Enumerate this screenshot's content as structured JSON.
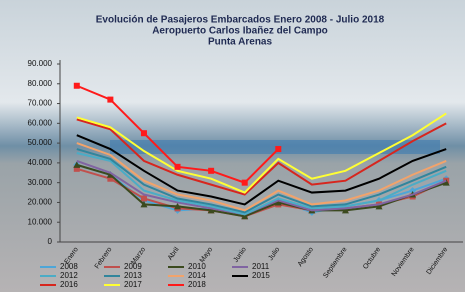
{
  "chart_data": {
    "type": "line",
    "title": [
      "Evolución de Pasajeros Embarcados Enero 2008 -  Julio 2018",
      "Aeropuerto Carlos Ibañez del Campo",
      "Punta Arenas"
    ],
    "categories": [
      "Enero",
      "Febrero",
      "Marzo",
      "Abril",
      "Mayo",
      "Junio",
      "Julio",
      "Agosto",
      "Septiembre",
      "Octubre",
      "Noviembre",
      "Diciembre"
    ],
    "ylim": [
      0,
      90000
    ],
    "yticks": [
      0,
      {
        "value": 10000,
        "label": "10.000"
      },
      {
        "value": 20000,
        "label": "20.000"
      },
      {
        "value": 30000,
        "label": "30.000"
      },
      {
        "value": 40000,
        "label": "40.000"
      },
      {
        "value": 50000,
        "label": "50.000"
      },
      {
        "value": 60000,
        "label": "60.000"
      },
      {
        "value": 70000,
        "label": "70.000"
      },
      {
        "value": 80000,
        "label": "80.000"
      },
      {
        "value": 90000,
        "label": "90.000"
      }
    ],
    "grid": false,
    "series": [
      {
        "name": "2008",
        "color": "#4da6d8",
        "marker": "diamond",
        "values": [
          39000,
          34000,
          21000,
          16000,
          17000,
          14000,
          21000,
          15000,
          18000,
          21000,
          26000,
          32000
        ]
      },
      {
        "name": "2009",
        "color": "#c0504d",
        "marker": "square",
        "values": [
          37000,
          32000,
          22000,
          17000,
          16000,
          13000,
          19000,
          16000,
          17000,
          19000,
          23000,
          31000
        ]
      },
      {
        "name": "2010",
        "color": "#3b4a1e",
        "marker": "triangle",
        "values": [
          39000,
          34000,
          19000,
          18000,
          16000,
          13000,
          20000,
          16000,
          16000,
          18000,
          24000,
          30000
        ]
      },
      {
        "name": "2011",
        "color": "#8064a2",
        "values": [
          41000,
          35000,
          24000,
          20000,
          17000,
          14000,
          21000,
          16000,
          17000,
          19000,
          24000,
          31000
        ]
      },
      {
        "name": "2012",
        "color": "#4bacc6",
        "values": [
          45000,
          41000,
          26000,
          21000,
          18000,
          14000,
          22000,
          17000,
          18000,
          21000,
          29000,
          36000
        ]
      },
      {
        "name": "2013",
        "color": "#31859c",
        "values": [
          47000,
          42000,
          29000,
          22000,
          19000,
          15000,
          24000,
          18000,
          19000,
          24000,
          31000,
          38000
        ]
      },
      {
        "name": "2014",
        "color": "#f2a36b",
        "values": [
          50000,
          44000,
          31000,
          24000,
          21000,
          16000,
          26000,
          19000,
          21000,
          26000,
          34000,
          41000
        ]
      },
      {
        "name": "2015",
        "color": "#000000",
        "values": [
          54000,
          47000,
          36000,
          26000,
          23000,
          19000,
          31000,
          25000,
          26000,
          32000,
          41000,
          47000
        ]
      },
      {
        "name": "2016",
        "color": "#d7261e",
        "values": [
          62000,
          57000,
          41000,
          34000,
          29000,
          24000,
          40000,
          29000,
          31000,
          41000,
          51000,
          60000
        ]
      },
      {
        "name": "2017",
        "color": "#ffff33",
        "values": [
          63000,
          58000,
          46000,
          36000,
          32000,
          25000,
          42000,
          32000,
          36000,
          45000,
          54000,
          65000
        ]
      },
      {
        "name": "2018",
        "color": "#ff1a1a",
        "marker": "square",
        "values": [
          79000,
          72000,
          55000,
          38000,
          36000,
          30000,
          47000,
          null,
          null,
          null,
          null,
          null
        ]
      }
    ]
  }
}
